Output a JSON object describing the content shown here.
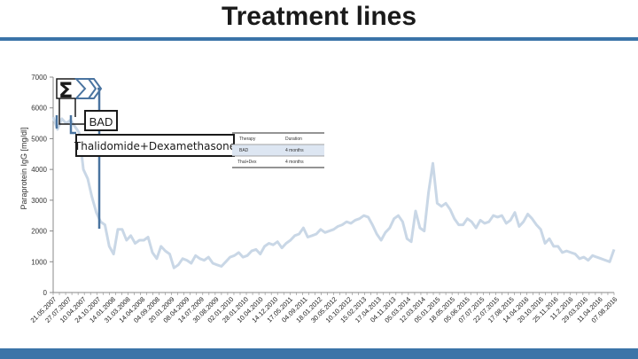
{
  "title": "Treatment lines",
  "colors": {
    "accent": "#3b74a8",
    "line": "#c9d7e6",
    "treatment": "#4a74a0"
  },
  "chart_data": {
    "type": "line",
    "ylabel": "Paraprotein IgG [mg/dl]",
    "xlabel": "",
    "ylim": [
      0,
      7000
    ],
    "yticks": [
      0,
      1000,
      2000,
      3000,
      4000,
      5000,
      6000,
      7000
    ],
    "tick_labels": [
      "21.05.2007",
      "27.07.2007",
      "10.04.2007",
      "24.10.2007",
      "14.01.2008",
      "31.03.2008",
      "14.04.2008",
      "04.09.2008",
      "20.01.2009",
      "08.04.2009",
      "14.07.2009",
      "30.08.2009",
      "02.01.2010",
      "28.01.2010",
      "10.04.2010",
      "14.12.2010",
      "17.05.2011",
      "04.09.2011",
      "18.01.2012",
      "30.05.2012",
      "10.10.2012",
      "15.02.2013",
      "17.04.2013",
      "04.11.2013",
      "05.03.2014",
      "12.03.2014",
      "05.01.2015",
      "18.05.2015",
      "05.06.2015",
      "07.07.2015",
      "22.07.2015",
      "17.08.2015",
      "14.04.2016",
      "20.10.2016",
      "25.11.2016",
      "11.2.2016",
      "29.03.2016",
      "11.04.2016",
      "07.08.2016"
    ],
    "series": [
      {
        "name": "Paraprotein IgG",
        "values": [
          5700,
          5300,
          5650,
          5500,
          5600,
          5400,
          5200,
          4000,
          3700,
          3100,
          2600,
          2300,
          2200,
          1500,
          1250,
          2050,
          2050,
          1700,
          1850,
          1600,
          1700,
          1700,
          1800,
          1300,
          1100,
          1500,
          1350,
          1250,
          800,
          900,
          1100,
          1050,
          950,
          1200,
          1100,
          1050,
          1150,
          950,
          900,
          850,
          1000,
          1150,
          1200,
          1300,
          1150,
          1200,
          1350,
          1400,
          1250,
          1500,
          1600,
          1550,
          1650,
          1450,
          1600,
          1700,
          1850,
          1900,
          2100,
          1800,
          1850,
          1900,
          2050,
          1950,
          2000,
          2050,
          2150,
          2200,
          2300,
          2250,
          2350,
          2400,
          2500,
          2450,
          2200,
          1900,
          1700,
          1950,
          2100,
          2400,
          2500,
          2300,
          1750,
          1650,
          2650,
          2100,
          2000,
          3250,
          4200,
          2900,
          2800,
          2900,
          2700,
          2400,
          2200,
          2200,
          2400,
          2300,
          2100,
          2350,
          2250,
          2300,
          2500,
          2450,
          2500,
          2250,
          2350,
          2600,
          2150,
          2300,
          2550,
          2400,
          2200,
          2050,
          1600,
          1750,
          1500,
          1500,
          1300,
          1350,
          1300,
          1250,
          1100,
          1150,
          1050,
          1200,
          1150,
          1100,
          1050,
          1000,
          1400
        ]
      }
    ],
    "annotations": [
      "BAD",
      "Thalidomide+Dexamethasone"
    ]
  },
  "table": {
    "headers": [
      "Therapy",
      "Duration"
    ],
    "rows": [
      [
        "BAD",
        "4 months"
      ],
      [
        "Thal+Dex",
        "4 months"
      ]
    ]
  }
}
